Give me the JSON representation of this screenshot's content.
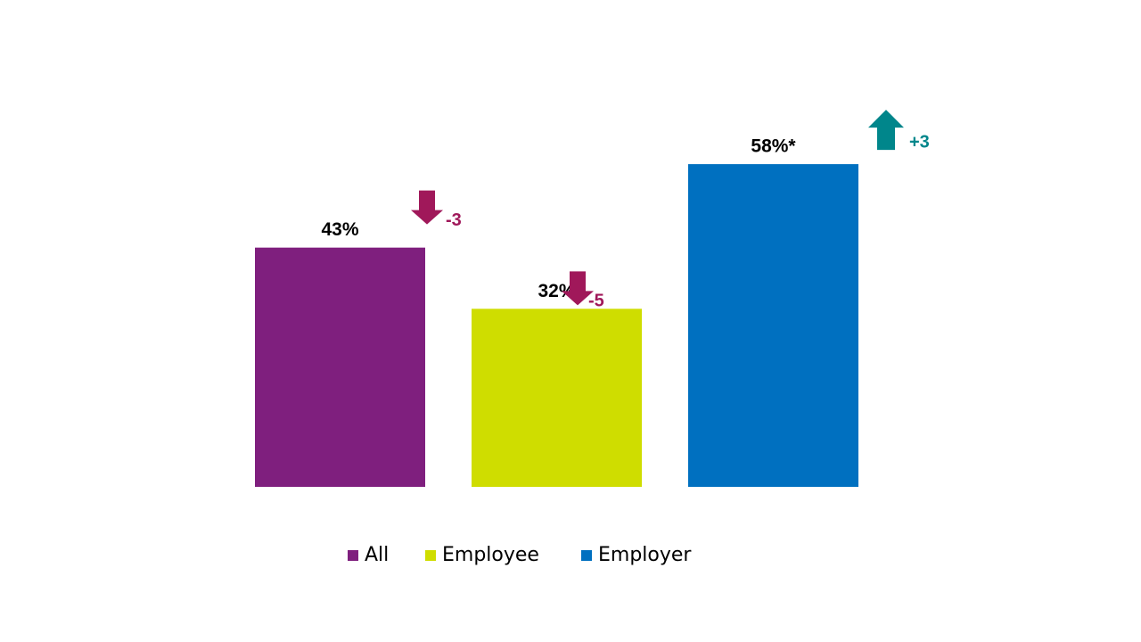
{
  "chart_data": {
    "type": "bar",
    "categories": [
      null
    ],
    "series": [
      {
        "name": "All",
        "color": "#7f1f7e",
        "values": [
          43
        ],
        "value_labels": [
          "43%"
        ],
        "changes": [
          -3
        ]
      },
      {
        "name": "Employee",
        "color": "#cfdd00",
        "values": [
          32
        ],
        "value_labels": [
          "32%"
        ],
        "changes": [
          -5
        ]
      },
      {
        "name": "Employer",
        "color": "#0070c0",
        "values": [
          58
        ],
        "value_labels": [
          "58%*"
        ],
        "changes": [
          3
        ],
        "change_labels": [
          "+3"
        ]
      }
    ],
    "down_color": "#a0185a",
    "up_color": "#00868b"
  }
}
